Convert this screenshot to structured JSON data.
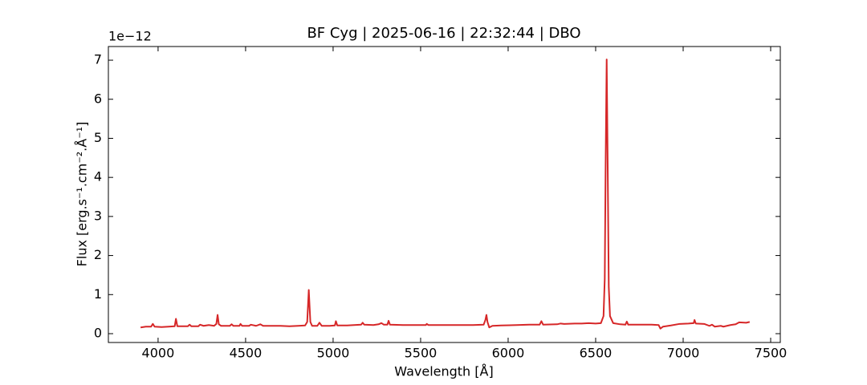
{
  "chart_data": {
    "type": "line",
    "title": "BF Cyg | 2025-06-16 | 22:32:44 | DBO",
    "xlabel": "Wavelength [Å]",
    "ylabel": "Flux [erg.s⁻¹.cm⁻².Å⁻¹]",
    "y_offset_label": "1e−12",
    "xlim": [
      3716,
      7555
    ],
    "ylim": [
      -0.226,
      7.35
    ],
    "xticks": [
      4000,
      4500,
      5000,
      5500,
      6000,
      6500,
      7000,
      7500
    ],
    "yticks": [
      0,
      1,
      2,
      3,
      4,
      5,
      6,
      7
    ],
    "x": [
      3900,
      3930,
      3960,
      3970,
      3980,
      4020,
      4060,
      4095,
      4102,
      4110,
      4170,
      4180,
      4190,
      4230,
      4240,
      4260,
      4290,
      4320,
      4333,
      4340,
      4347,
      4360,
      4410,
      4420,
      4430,
      4465,
      4471,
      4480,
      4520,
      4530,
      4560,
      4584,
      4600,
      4650,
      4700,
      4750,
      4800,
      4840,
      4852,
      4857,
      4861,
      4865,
      4870,
      4880,
      4910,
      4922,
      4935,
      4980,
      5010,
      5016,
      5024,
      5080,
      5120,
      5160,
      5169,
      5178,
      5230,
      5260,
      5276,
      5290,
      5310,
      5317,
      5325,
      5400,
      5470,
      5530,
      5535,
      5545,
      5620,
      5700,
      5760,
      5800,
      5860,
      5870,
      5876,
      5882,
      5892,
      5910,
      5960,
      6050,
      6120,
      6180,
      6190,
      6200,
      6280,
      6300,
      6320,
      6380,
      6420,
      6460,
      6500,
      6530,
      6545,
      6552,
      6557,
      6563,
      6569,
      6575,
      6582,
      6600,
      6640,
      6670,
      6678,
      6686,
      6750,
      6820,
      6860,
      6870,
      6885,
      6930,
      6980,
      7030,
      7060,
      7065,
      7072,
      7120,
      7150,
      7165,
      7180,
      7215,
      7230,
      7270,
      7300,
      7320,
      7360,
      7380
    ],
    "series": [
      {
        "name": "BF Cyg",
        "color": "#d62728",
        "values": [
          0.16,
          0.18,
          0.18,
          0.25,
          0.18,
          0.17,
          0.18,
          0.19,
          0.38,
          0.19,
          0.19,
          0.23,
          0.19,
          0.19,
          0.23,
          0.2,
          0.22,
          0.2,
          0.25,
          0.48,
          0.24,
          0.2,
          0.2,
          0.24,
          0.2,
          0.2,
          0.25,
          0.2,
          0.2,
          0.23,
          0.2,
          0.24,
          0.2,
          0.2,
          0.2,
          0.19,
          0.2,
          0.21,
          0.3,
          0.75,
          1.12,
          0.75,
          0.3,
          0.2,
          0.2,
          0.28,
          0.2,
          0.2,
          0.21,
          0.32,
          0.21,
          0.21,
          0.22,
          0.23,
          0.28,
          0.23,
          0.22,
          0.24,
          0.27,
          0.23,
          0.23,
          0.33,
          0.23,
          0.22,
          0.22,
          0.22,
          0.25,
          0.22,
          0.22,
          0.22,
          0.22,
          0.22,
          0.23,
          0.35,
          0.48,
          0.3,
          0.16,
          0.2,
          0.21,
          0.22,
          0.23,
          0.23,
          0.32,
          0.23,
          0.24,
          0.26,
          0.25,
          0.26,
          0.26,
          0.27,
          0.26,
          0.27,
          0.45,
          1.4,
          4.3,
          7.02,
          4.2,
          1.2,
          0.45,
          0.27,
          0.24,
          0.23,
          0.31,
          0.23,
          0.23,
          0.23,
          0.22,
          0.13,
          0.18,
          0.21,
          0.25,
          0.26,
          0.27,
          0.35,
          0.26,
          0.25,
          0.2,
          0.23,
          0.18,
          0.2,
          0.18,
          0.22,
          0.24,
          0.29,
          0.28,
          0.3
        ]
      }
    ]
  }
}
